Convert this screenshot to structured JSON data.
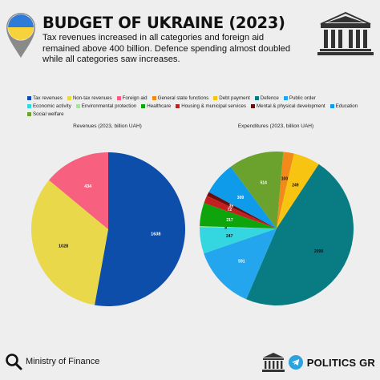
{
  "header": {
    "title": "BUDGET OF UKRAINE (2023)",
    "subtitle": "Tax revenues increased in all categories and foreign aid remained above 400 billion. Defence spending almost doubled while all categories saw increases."
  },
  "footer": {
    "source": "Ministry of Finance",
    "brand": "POLITICS GR"
  },
  "colors": {
    "background": "#efeeee",
    "flag_blue": "#2f7bd8",
    "flag_yellow": "#f7d23a",
    "telegram_blue": "#2aa3de"
  },
  "legend": [
    {
      "label": "Tax revenues",
      "color": "#0c4ea9"
    },
    {
      "label": "Non-tax revenues",
      "color": "#e8d84a"
    },
    {
      "label": "Foreign aid",
      "color": "#f7617f"
    },
    {
      "label": "General state functions",
      "color": "#f28a1a"
    },
    {
      "label": "Debt payment",
      "color": "#f7c411"
    },
    {
      "label": "Defence",
      "color": "#097c83"
    },
    {
      "label": "Public order",
      "color": "#23a6ee"
    },
    {
      "label": "Economic activity",
      "color": "#34d7e0"
    },
    {
      "label": "Environmental protection",
      "color": "#9fe896"
    },
    {
      "label": "Healthcare",
      "color": "#0ea40c"
    },
    {
      "label": "Housing & municipal services",
      "color": "#c4201f"
    },
    {
      "label": "Mental & physical development",
      "color": "#6b0d0d"
    },
    {
      "label": "Education",
      "color": "#0e9bea"
    },
    {
      "label": "Social welfare",
      "color": "#6aa22d"
    }
  ],
  "chart_data": [
    {
      "type": "pie",
      "title": "Revenues (2023, billion UAH)",
      "slices": [
        {
          "name": "Tax revenues",
          "value": 1638,
          "color": "#0c4ea9",
          "label_color": "#ffffff"
        },
        {
          "name": "Non-tax revenues",
          "value": 1028,
          "color": "#e8d84a",
          "label_color": "#111111"
        },
        {
          "name": "Foreign aid",
          "value": 434,
          "color": "#f7617f",
          "label_color": "#ffffff"
        }
      ]
    },
    {
      "type": "pie",
      "title": "Expenditures (2023, billion UAH)",
      "slices": [
        {
          "name": "General state functions",
          "value": 100,
          "color": "#f28a1a",
          "label_color": "#111111"
        },
        {
          "name": "Debt payment",
          "value": 249,
          "color": "#f7c411",
          "label_color": "#111111"
        },
        {
          "name": "Defence",
          "value": 2098,
          "color": "#097c83",
          "label_color": "#111111"
        },
        {
          "name": "Public order",
          "value": 591,
          "color": "#23a6ee",
          "label_color": "#ffffff"
        },
        {
          "name": "Economic activity",
          "value": 247,
          "color": "#34d7e0",
          "label_color": "#111111"
        },
        {
          "name": "Environmental protection",
          "value": 8,
          "color": "#9fe896",
          "label_color": "#111111"
        },
        {
          "name": "Healthcare",
          "value": 217,
          "color": "#0ea40c",
          "label_color": "#ffffff"
        },
        {
          "name": "Housing & municipal services",
          "value": 72,
          "color": "#c4201f",
          "label_color": "#ffffff"
        },
        {
          "name": "Mental & physical development",
          "value": 39,
          "color": "#6b0d0d",
          "label_color": "#ffffff"
        },
        {
          "name": "Education",
          "value": 309,
          "color": "#0e9bea",
          "label_color": "#ffffff"
        },
        {
          "name": "Social welfare",
          "value": 514,
          "color": "#6aa22d",
          "label_color": "#ffffff"
        }
      ]
    }
  ]
}
